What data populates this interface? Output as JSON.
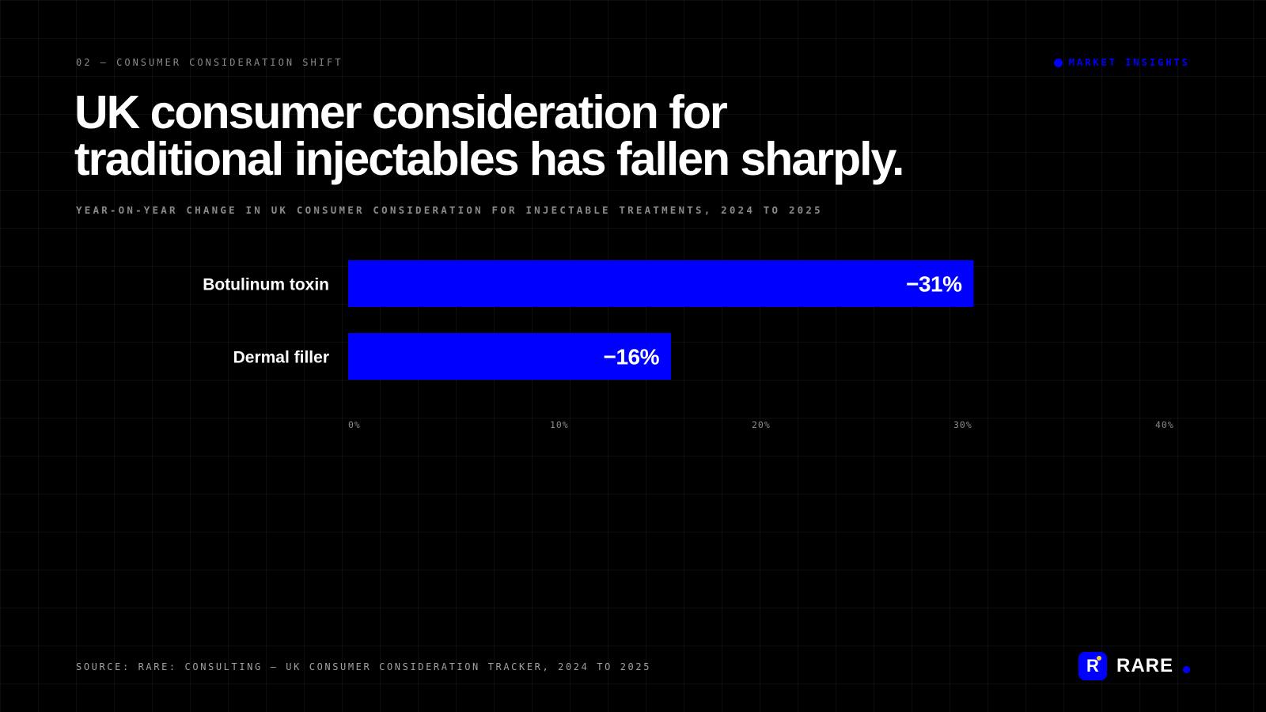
{
  "header": {
    "eyebrow": "02 — CONSUMER CONSIDERATION SHIFT",
    "tag_label": "MARKET INSIGHTS"
  },
  "title_lines": [
    "UK consumer consideration for",
    "traditional injectables has fallen sharply."
  ],
  "subtitle": "YEAR-ON-YEAR CHANGE IN UK CONSUMER CONSIDERATION FOR INJECTABLE TREATMENTS, 2024 TO 2025",
  "chart_data": {
    "type": "bar",
    "orientation": "horizontal",
    "categories": [
      "Botulinum toxin",
      "Dermal filler"
    ],
    "values": [
      31,
      16
    ],
    "value_labels": [
      "−31%",
      "−16%"
    ],
    "xlim": [
      0,
      40
    ],
    "x_ticks": [
      0,
      10,
      20,
      30,
      40
    ],
    "x_tick_labels": [
      "0%",
      "10%",
      "20%",
      "30%",
      "40%"
    ],
    "grid": true
  },
  "footer": {
    "source": "SOURCE: RARE: CONSULTING — UK CONSUMER CONSIDERATION TRACKER, 2024 TO 2025",
    "brand_mark": "R",
    "brand_name": "RARE"
  },
  "colors": {
    "accent": "#0000ff",
    "background": "#000000",
    "spark": "#f5d142",
    "tick": "#8a8a8a"
  },
  "icons": {
    "tag_dot": "dot-icon",
    "brand_spark": "spark-dot-icon",
    "brand_dot": "dot-icon"
  }
}
